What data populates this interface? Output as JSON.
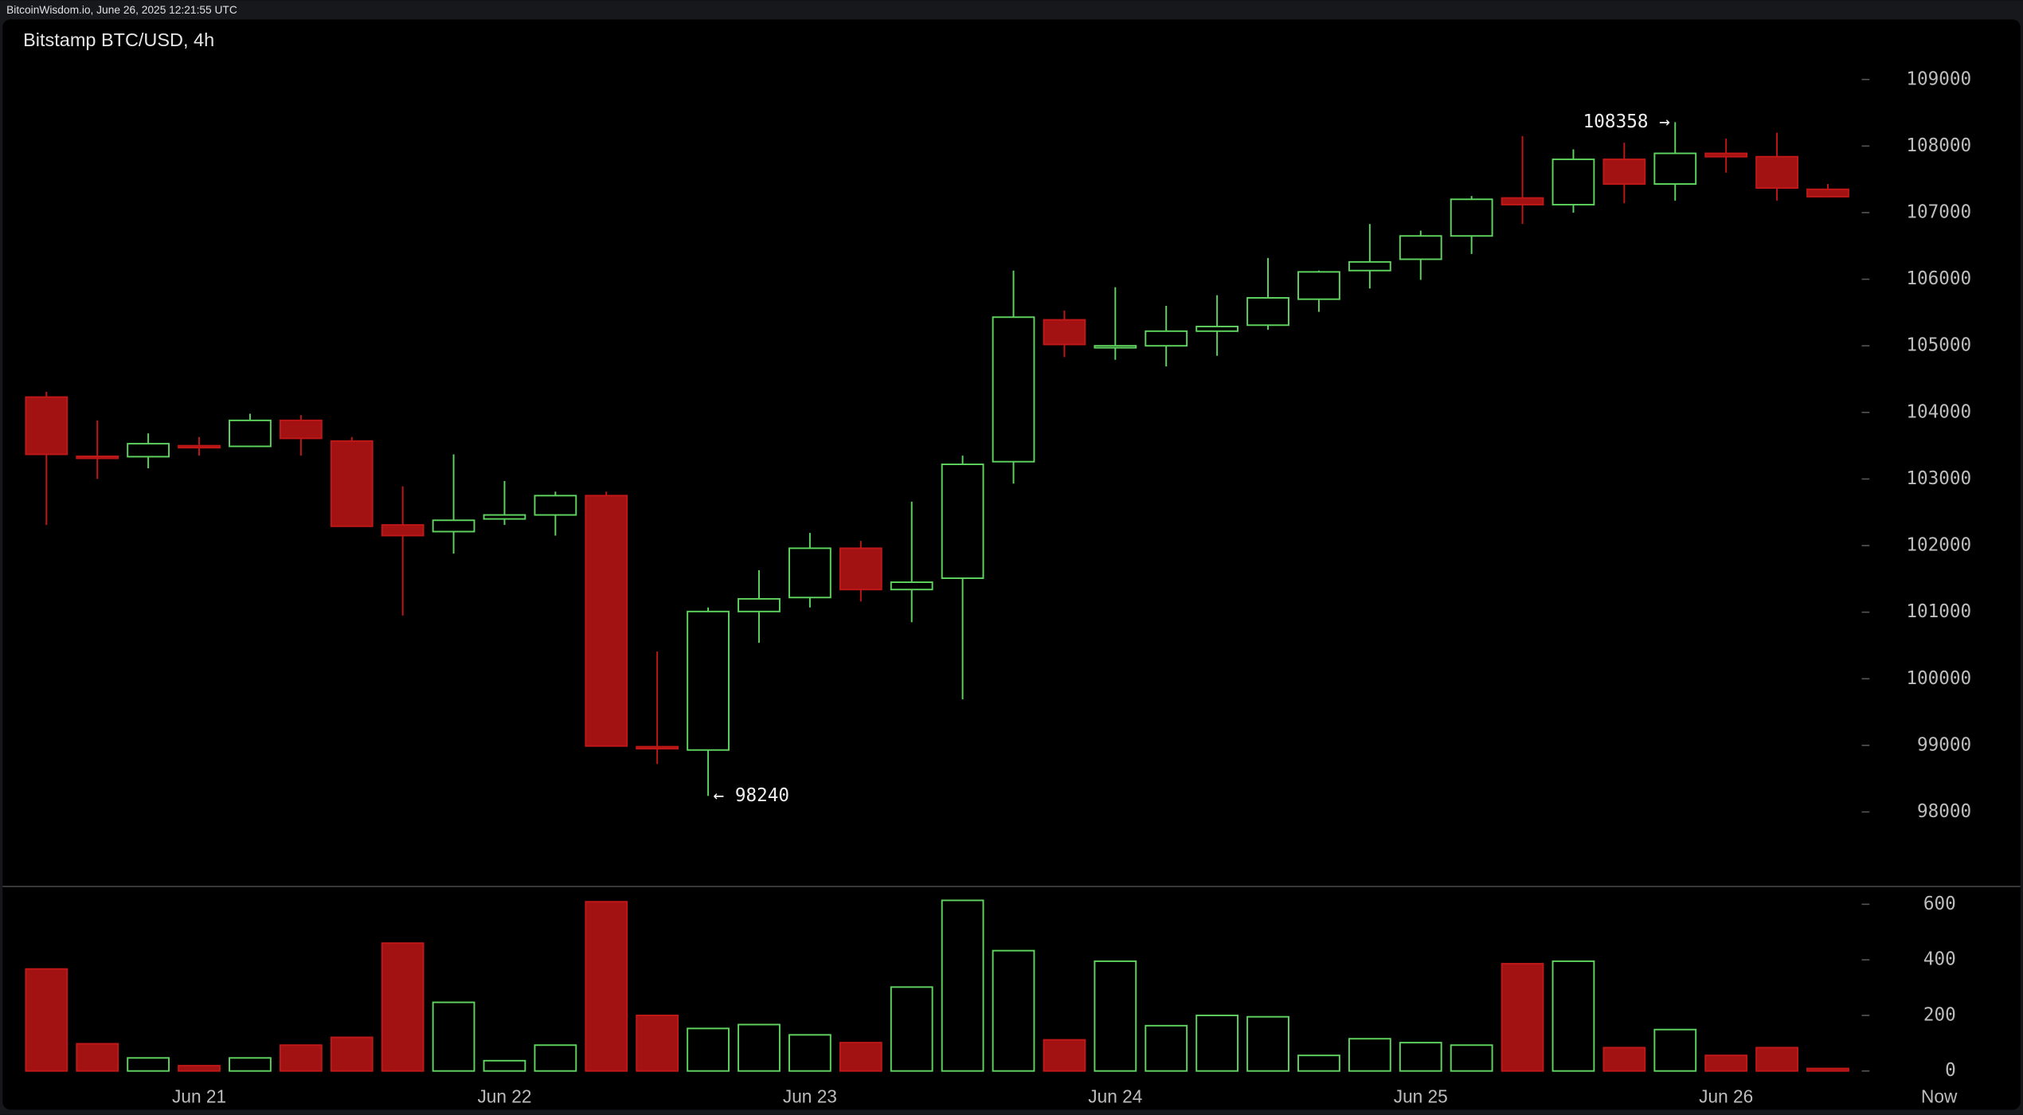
{
  "header": "BitcoinWisdom.io, June 26, 2025 12:21:55 UTC",
  "chart_data": {
    "type": "candlestick",
    "title": "Bitstamp BTC/USD, 4h",
    "categories": [
      null,
      null,
      null,
      "Jun 21",
      null,
      null,
      null,
      null,
      null,
      "Jun 22",
      null,
      null,
      null,
      null,
      null,
      "Jun 23",
      null,
      null,
      null,
      null,
      null,
      "Jun 24",
      null,
      null,
      null,
      null,
      null,
      "Jun 25",
      null,
      null,
      null,
      null,
      null,
      "Jun 26",
      null,
      null
    ],
    "end_label": "Now",
    "open": [
      104230,
      103340,
      103335,
      103500,
      103490,
      103880,
      103570,
      102310,
      102210,
      102400,
      102460,
      102750,
      98980,
      98930,
      101010,
      101220,
      101960,
      101340,
      101510,
      103260,
      105390,
      104980,
      105000,
      105220,
      105310,
      105700,
      106130,
      106300,
      106650,
      107220,
      107120,
      107800,
      107430,
      107890,
      107840,
      107350
    ],
    "high": [
      104310,
      103880,
      103685,
      103630,
      103980,
      103960,
      103630,
      102890,
      103370,
      102970,
      102810,
      102810,
      100410,
      101070,
      101630,
      102190,
      102070,
      102660,
      103350,
      106130,
      105530,
      105880,
      105600,
      105760,
      106320,
      106130,
      106830,
      106730,
      107250,
      108150,
      107950,
      108050,
      108358,
      108110,
      108200,
      107430
    ],
    "low": [
      102310,
      103000,
      103160,
      103350,
      103480,
      103350,
      102290,
      100950,
      101880,
      102310,
      102150,
      98980,
      98720,
      98240,
      100540,
      101070,
      101160,
      100850,
      99690,
      102930,
      104830,
      104790,
      104690,
      104850,
      105240,
      105510,
      105860,
      105990,
      106380,
      106830,
      107000,
      107140,
      107180,
      107600,
      107180,
      107230
    ],
    "close": [
      103370,
      103310,
      103530,
      103470,
      103880,
      103610,
      102290,
      102150,
      102380,
      102460,
      102750,
      98990,
      98950,
      101010,
      101200,
      101960,
      101340,
      101450,
      103220,
      105430,
      105020,
      105000,
      105220,
      105290,
      105720,
      106110,
      106260,
      106650,
      107200,
      107120,
      107800,
      107430,
      107890,
      107840,
      107370,
      107240
    ],
    "volume": [
      367,
      98,
      47,
      19,
      47,
      93,
      121,
      460,
      247,
      37,
      93,
      609,
      200,
      153,
      167,
      130,
      102,
      302,
      614,
      433,
      112,
      395,
      163,
      200,
      195,
      56,
      116,
      102,
      93,
      386,
      395,
      84,
      149,
      56,
      84,
      9
    ],
    "up_color": "#5fd35f",
    "down_color": "#a31212",
    "ylim": [
      96900,
      109900
    ],
    "yticks": [
      98000,
      99000,
      100000,
      101000,
      102000,
      103000,
      104000,
      105000,
      106000,
      107000,
      108000,
      109000
    ],
    "y2lim": [
      0,
      650
    ],
    "y2ticks": [
      0,
      200,
      400,
      600
    ],
    "annotations": [
      {
        "label": "108358 →",
        "value": 108358
      },
      {
        "label": "← 98240",
        "value": 98240
      }
    ]
  }
}
